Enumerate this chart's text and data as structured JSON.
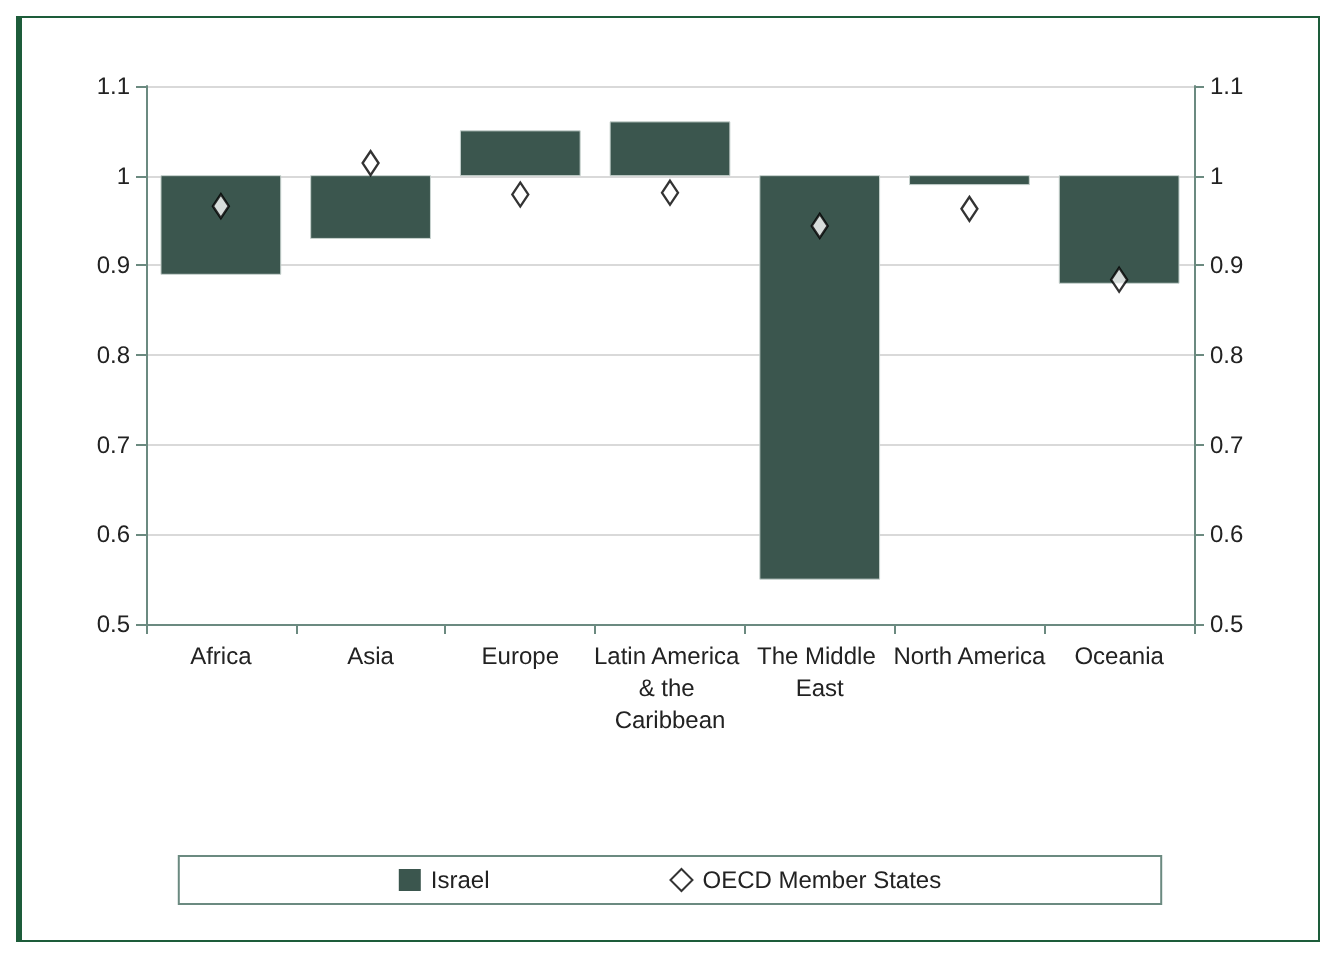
{
  "chart_data": {
    "type": "bar",
    "categories": [
      "Africa",
      "Asia",
      "Europe",
      "Latin America & the Caribbean",
      "The Middle East",
      "North America",
      "Oceania"
    ],
    "series": [
      {
        "name": "Israel",
        "color": "#3b564e",
        "base": [
          1,
          1,
          1,
          1,
          1,
          1,
          1
        ],
        "values": [
          -0.11,
          -0.07,
          0.05,
          0.06,
          -0.45,
          -0.01,
          -0.12
        ]
      },
      {
        "name": "OECD Member States",
        "type": "scatter",
        "marker": "diamond",
        "color": "#ffffff",
        "values": [
          0.966,
          1.014,
          0.979,
          0.981,
          0.944,
          0.963,
          0.884
        ]
      }
    ],
    "ylim": [
      0.5,
      1.1
    ],
    "yticks": [
      0.5,
      0.6,
      0.7,
      0.8,
      0.9,
      1,
      1.1
    ],
    "y2lim": [
      0.5,
      1.1
    ],
    "y2ticks": [
      0.5,
      0.6,
      0.7,
      0.8,
      0.9,
      1,
      1.1
    ],
    "grid": "y",
    "legend": "bottom"
  }
}
